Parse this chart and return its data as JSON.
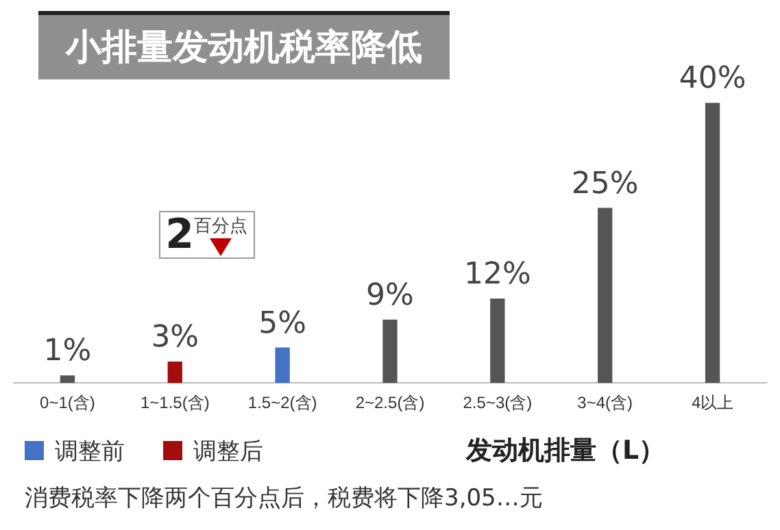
{
  "chart_data": {
    "type": "bar",
    "title": "小排量发动机税率降低",
    "xlabel": "发动机排量（L）",
    "categories": [
      "0~1(含)",
      "1~1.5(含)",
      "1.5~2(含)",
      "2~2.5(含)",
      "2.5~3(含)",
      "3~4(含)",
      "4以上"
    ],
    "series": [
      {
        "color": "#555555",
        "values": [
          1,
          null,
          null,
          9,
          12,
          25,
          40
        ],
        "value_labels": [
          "1%",
          null,
          null,
          "9%",
          "12%",
          "25%",
          "40%"
        ]
      },
      {
        "name": "调整前",
        "color": "#4472c4",
        "values": [
          null,
          null,
          5,
          null,
          null,
          null,
          null
        ],
        "value_labels": [
          null,
          null,
          "5%",
          null,
          null,
          null,
          null
        ]
      },
      {
        "name": "调整后",
        "color": "#a30d0d",
        "values": [
          null,
          3,
          null,
          null,
          null,
          null,
          null
        ],
        "value_labels": [
          null,
          "3%",
          null,
          null,
          null,
          null,
          null
        ]
      }
    ],
    "annotations": [
      {
        "text": "2百分点",
        "x": "1~1.5(含)",
        "y": 3
      },
      "消费税率下降两个百分点后，税费将下降3,05…元"
    ],
    "legend": "bottom left",
    "grid": false
  }
}
